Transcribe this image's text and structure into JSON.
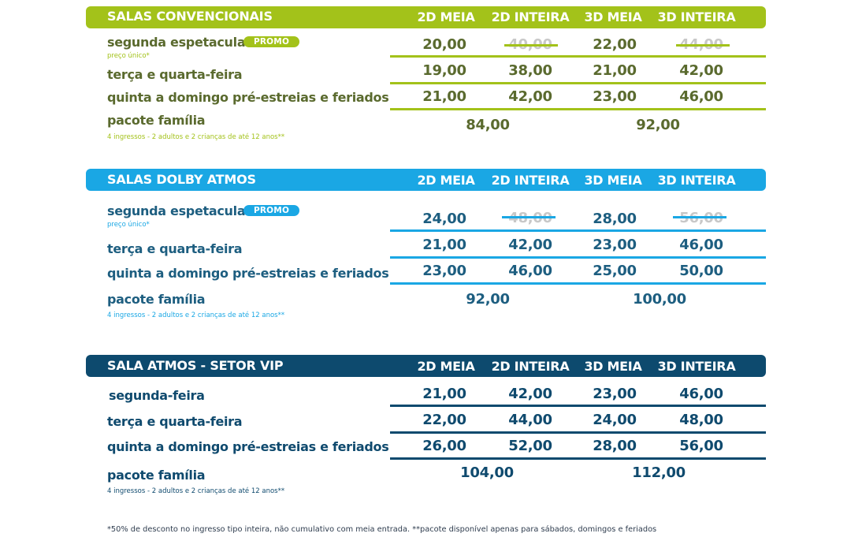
{
  "colors": {
    "convencionais": "#a3c21a",
    "convencionais_text": "#5a6a2e",
    "dolby": "#1aa7e4",
    "dolby_text": "#1d5e80",
    "vip": "#0d4a6e",
    "vip_text": "#0f4a6e"
  },
  "columns": [
    "2D MEIA",
    "2D INTEIRA",
    "3D MEIA",
    "3D INTEIRA"
  ],
  "sections": [
    {
      "title": "SALAS CONVENCIONAIS",
      "rows": [
        {
          "label": "segunda espetacular",
          "badge": "PROMO",
          "note": "preço único*",
          "values": [
            "20,00",
            "40,00",
            "22,00",
            "44,00"
          ]
        },
        {
          "label": "terça e quarta-feira",
          "values": [
            "19,00",
            "38,00",
            "21,00",
            "42,00"
          ]
        },
        {
          "label": "quinta a domingo pré-estreias e feriados",
          "values": [
            "21,00",
            "42,00",
            "23,00",
            "46,00"
          ]
        }
      ],
      "family": {
        "label": "pacote família",
        "note": "4 ingressos - 2 adultos e 2 crianças de até 12 anos**",
        "price_2d": "84,00",
        "price_3d": "92,00"
      }
    },
    {
      "title": "SALAS DOLBY ATMOS",
      "rows": [
        {
          "label": "segunda espetacular",
          "badge": "PROMO",
          "note": "preço único*",
          "values": [
            "24,00",
            "48,00",
            "28,00",
            "56,00"
          ]
        },
        {
          "label": "terça e quarta-feira",
          "values": [
            "21,00",
            "42,00",
            "23,00",
            "46,00"
          ]
        },
        {
          "label": "quinta a domingo pré-estreias e feriados",
          "values": [
            "23,00",
            "46,00",
            "25,00",
            "50,00"
          ]
        }
      ],
      "family": {
        "label": "pacote família",
        "note": "4 ingressos - 2 adultos e 2 crianças de até 12 anos**",
        "price_2d": "92,00",
        "price_3d": "100,00"
      }
    },
    {
      "title": "SALA ATMOS - SETOR VIP",
      "rows": [
        {
          "label": "segunda-feira",
          "values": [
            "21,00",
            "42,00",
            "23,00",
            "46,00"
          ]
        },
        {
          "label": "terça e quarta-feira",
          "values": [
            "22,00",
            "44,00",
            "24,00",
            "48,00"
          ]
        },
        {
          "label": "quinta a domingo pré-estreias e feriados",
          "values": [
            "26,00",
            "52,00",
            "28,00",
            "56,00"
          ]
        }
      ],
      "family": {
        "label": "pacote família",
        "note": "4 ingressos - 2 adultos e 2 crianças de até 12 anos**",
        "price_2d": "104,00",
        "price_3d": "112,00"
      }
    }
  ],
  "footnote": "*50% de desconto no ingresso tipo inteira, não cumulativo com meia entrada.  **pacote disponível apenas para sábados, domingos e feriados"
}
